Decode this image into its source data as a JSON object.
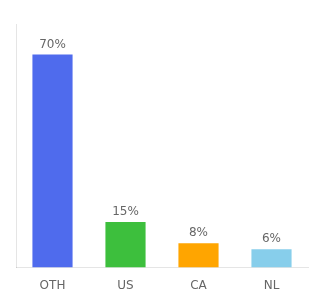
{
  "chart_data": {
    "type": "bar",
    "categories": [
      "OTH",
      "US",
      "CA",
      "NL"
    ],
    "values": [
      70,
      15,
      8,
      6
    ],
    "value_labels": [
      "70%",
      "15%",
      "8%",
      "6%"
    ],
    "data_labels": true,
    "colors": [
      "#4F6BED",
      "#3DBF3D",
      "#FFA500",
      "#87CEEB"
    ],
    "ylim": [
      0,
      80
    ],
    "grid": false,
    "tick_labels": "x"
  }
}
